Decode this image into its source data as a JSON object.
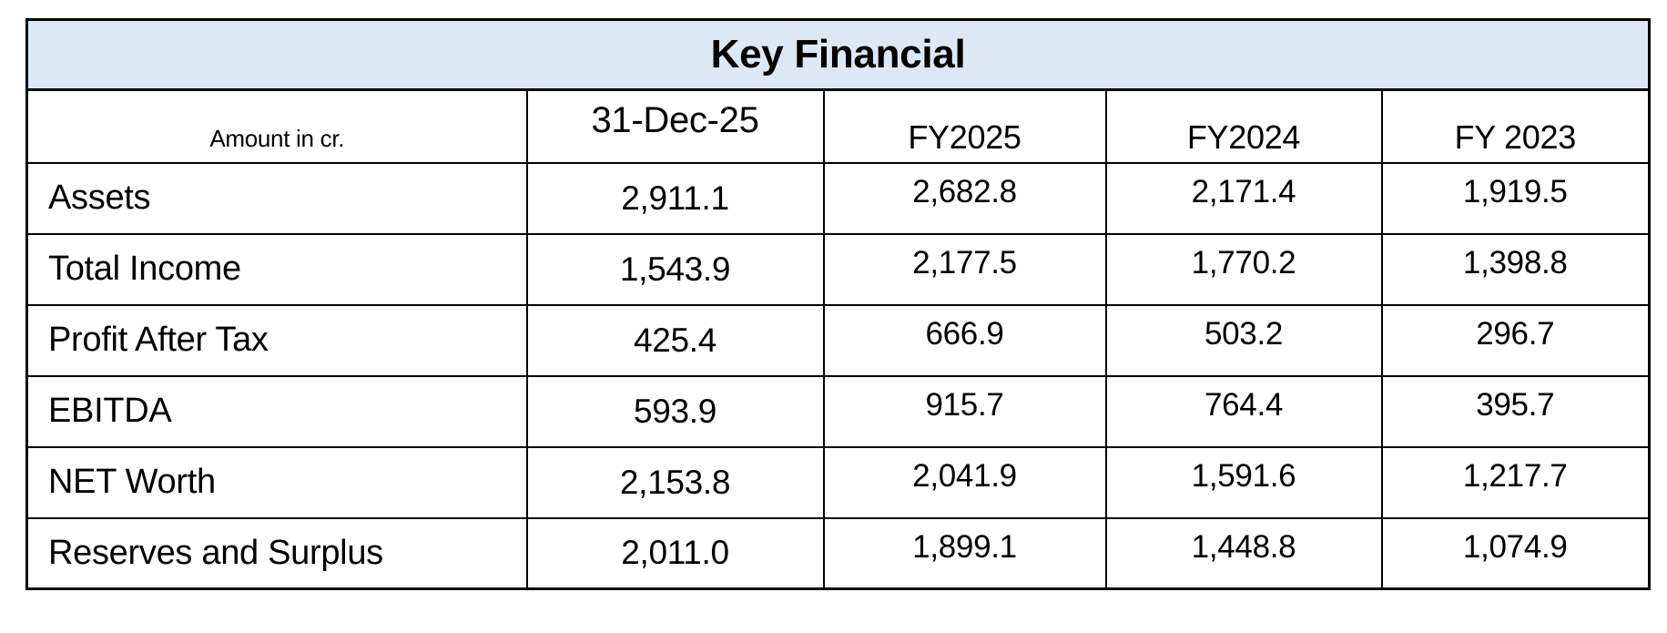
{
  "table": {
    "title": "Key Financial",
    "corner_label": "Amount in cr.",
    "columns": [
      "31-Dec-25",
      "FY2025",
      "FY2024",
      "FY 2023"
    ],
    "rows": [
      {
        "label": "Assets",
        "values": [
          "2,911.1",
          "2,682.8",
          "2,171.4",
          "1,919.5"
        ]
      },
      {
        "label": "Total Income",
        "values": [
          "1,543.9",
          "2,177.5",
          "1,770.2",
          "1,398.8"
        ]
      },
      {
        "label": "Profit After Tax",
        "values": [
          "425.4",
          "666.9",
          "503.2",
          "296.7"
        ]
      },
      {
        "label": "EBITDA",
        "values": [
          "593.9",
          "915.7",
          "764.4",
          "395.7"
        ]
      },
      {
        "label": "NET Worth",
        "values": [
          "2,153.8",
          "2,041.9",
          "1,591.6",
          "1,217.7"
        ]
      },
      {
        "label": "Reserves and Surplus",
        "values": [
          "2,011.0",
          "1,899.1",
          "1,448.8",
          "1,074.9"
        ]
      }
    ],
    "colors": {
      "title_background": "#dce9f4",
      "border": "#000000",
      "text": "#000000",
      "fy_value_text": "#31373d"
    }
  },
  "chart_data": {
    "type": "table",
    "title": "Key Financial",
    "unit_note": "Amount in cr.",
    "categories": [
      "31-Dec-25",
      "FY2025",
      "FY2024",
      "FY 2023"
    ],
    "series": [
      {
        "name": "Assets",
        "values": [
          2911.1,
          2682.8,
          2171.4,
          1919.5
        ]
      },
      {
        "name": "Total Income",
        "values": [
          1543.9,
          2177.5,
          1770.2,
          1398.8
        ]
      },
      {
        "name": "Profit After Tax",
        "values": [
          425.4,
          666.9,
          503.2,
          296.7
        ]
      },
      {
        "name": "EBITDA",
        "values": [
          593.9,
          915.7,
          764.4,
          395.7
        ]
      },
      {
        "name": "NET Worth",
        "values": [
          2153.8,
          2041.9,
          1591.6,
          1217.7
        ]
      },
      {
        "name": "Reserves and Surplus",
        "values": [
          2011.0,
          1899.1,
          1448.8,
          1074.9
        ]
      }
    ]
  }
}
